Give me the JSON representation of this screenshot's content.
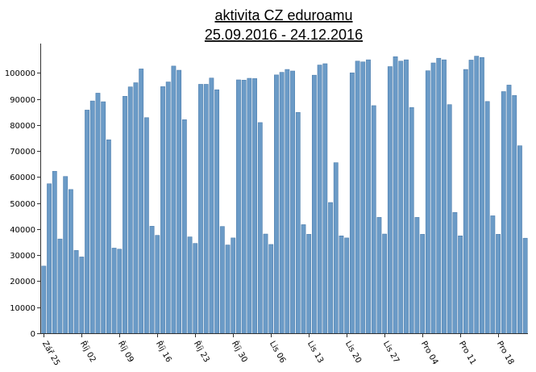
{
  "chart_data": {
    "type": "bar",
    "title": "aktivita CZ eduroamu",
    "subtitle": "25.09.2016 - 24.12.2016",
    "xlabel": "",
    "ylabel": "",
    "ylim": [
      0,
      110000
    ],
    "yticks": [
      0,
      10000,
      20000,
      30000,
      40000,
      50000,
      60000,
      70000,
      80000,
      90000,
      100000
    ],
    "grid": false,
    "x_tick_labels": [
      "Zář 25",
      "Říj 02",
      "Říj 09",
      "Říj 16",
      "Říj 23",
      "Říj 30",
      "Lis 06",
      "Lis 13",
      "Lis 20",
      "Lis 27",
      "Pro 04",
      "Pro 11",
      "Pro 18"
    ],
    "x_tick_step_days": 7,
    "values": [
      25800,
      57400,
      62200,
      36200,
      60200,
      55200,
      31800,
      29300,
      85700,
      89200,
      92200,
      88900,
      74300,
      32700,
      32300,
      91000,
      94600,
      96200,
      101500,
      82800,
      41100,
      37600,
      94700,
      96500,
      102600,
      101000,
      82000,
      37000,
      34500,
      95600,
      95600,
      98000,
      93500,
      41000,
      33900,
      36600,
      97300,
      97200,
      97900,
      97800,
      80900,
      38100,
      34100,
      99200,
      100200,
      101300,
      100700,
      84800,
      41700,
      38000,
      99100,
      103000,
      103500,
      50200,
      65500,
      37400,
      36600,
      100000,
      104500,
      104200,
      105000,
      87400,
      44500,
      38100,
      102400,
      106200,
      104500,
      105000,
      86700,
      44500,
      38000,
      100800,
      103800,
      105600,
      105000,
      87800,
      46400,
      37400,
      101300,
      104900,
      106400,
      105900,
      89000,
      45100,
      38000,
      92800,
      95300,
      91300,
      72000,
      36500
    ]
  }
}
